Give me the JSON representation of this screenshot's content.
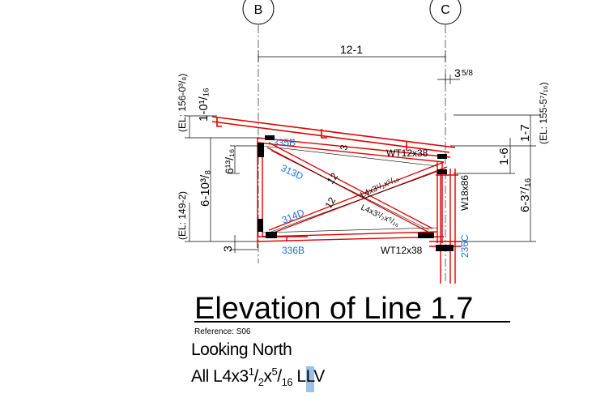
{
  "grid": {
    "left": "B",
    "right": "C"
  },
  "dims": {
    "span": "12-1",
    "offset_whole": "3",
    "offset_frac": "5/8",
    "left_top_el": "(EL: 156-0³/₈)",
    "left_top_dim": "1-0¹/₁₆",
    "left_small": "6¹³/₁₆",
    "left_big": "6-10³/₈",
    "left_bot_el": "(EL: 149-2)",
    "left_bot_dim": "3",
    "right_top_el": "(EL: 155-5⁷/₁₆)",
    "right_top_dim": "1-7",
    "right_mid_dim": "1-6",
    "right_big_dim": "6-3⁷/₁₆",
    "slope_top": "3",
    "slope_l1": "12",
    "slope_l2": "12",
    "slope_mid": "2"
  },
  "members": {
    "top_left": "335B",
    "top_chord": "WT12x38",
    "diag_upper": "313D",
    "diag_lower": "314D",
    "brace_a": "L4x3¹/₂x⁵/₁₆",
    "brace_b": "L4x3¹/₂x⁵/₁₆",
    "bot_left": "336B",
    "bot_chord": "WT12x38",
    "column": "W18x86",
    "conn": "236C"
  },
  "title": "Elevation of Line 1.7",
  "reference": "Reference: S06",
  "looking": "Looking North",
  "note": {
    "prefix": "All L4x3",
    "a_sup": "1",
    "a_sub": "2",
    "mid": "x",
    "b_sup": "5",
    "b_sub": "16",
    "suffix": " LLV"
  },
  "colors": {
    "steel": "#e00000",
    "mark": "#1e6fd9",
    "line": "#000000"
  }
}
